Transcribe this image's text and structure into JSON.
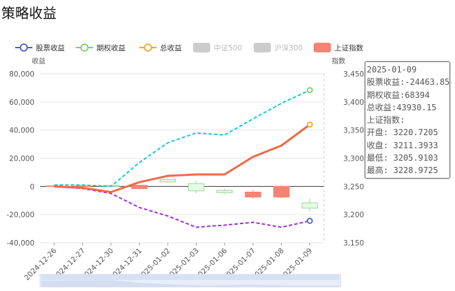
{
  "page": {
    "title": "策略收益"
  },
  "colors": {
    "stock": "#9b30e0",
    "option": "#15c8e0",
    "total": "#ee6a45",
    "candle_up": "#f98373",
    "candle_down": "#e4fbe4",
    "candle_down_border": "#9bd59b",
    "legend_disabled": "#cccccc",
    "grid": "#e6e6e6"
  },
  "legend": [
    {
      "name": "股票收益",
      "icon": "circle-line",
      "color": "#4b5fc4",
      "enabled": true
    },
    {
      "name": "期权收益",
      "icon": "circle-line",
      "color": "#7ccf66",
      "enabled": true
    },
    {
      "name": "总收益",
      "icon": "circle-line",
      "color": "#f5a623",
      "enabled": true
    },
    {
      "name": "中证500",
      "icon": "rounded-rect",
      "color": "#cccccc",
      "enabled": false
    },
    {
      "name": "沪深300",
      "icon": "rounded-rect",
      "color": "#cccccc",
      "enabled": false
    },
    {
      "name": "上证指数",
      "icon": "rounded-rect",
      "color": "#f98373",
      "enabled": true
    }
  ],
  "tooltip": {
    "date": "2025-01-09",
    "rows": [
      {
        "label": "股票收益",
        "value": "-24463.85"
      },
      {
        "label": "期权收益",
        "value": "68394"
      },
      {
        "label": "总收益",
        "value": "43930.15"
      }
    ],
    "index_label": "上证指数:",
    "index_rows": [
      {
        "label": "开盘",
        "value": "3220.7205"
      },
      {
        "label": "收盘",
        "value": "3211.3933"
      },
      {
        "label": "最低",
        "value": "3205.9103"
      },
      {
        "label": "最高",
        "value": "3228.9725"
      }
    ]
  },
  "chart_data": {
    "type": "line",
    "categories": [
      "2024-12-26",
      "2024-12-27",
      "2024-12-30",
      "2024-12-31",
      "2025-01-02",
      "2025-01-03",
      "2025-01-06",
      "2025-01-07",
      "2025-01-08",
      "2025-01-09"
    ],
    "y_left": {
      "label": "收益",
      "min": -40000,
      "max": 80000,
      "ticks": [
        "80,000",
        "60,000",
        "40,000",
        "20,000",
        "0",
        "-20,000",
        "-40,000"
      ]
    },
    "y_right": {
      "label": "指数",
      "min": 3150,
      "max": 3450,
      "ticks": [
        "3,450",
        "3,400",
        "3,350",
        "3,300",
        "3,250",
        "3,200",
        "3,150"
      ]
    },
    "series": [
      {
        "name": "股票收益",
        "axis": "left",
        "values": [
          0,
          -1500,
          -5000,
          -15000,
          -21000,
          -29000,
          -27500,
          -25500,
          -29000,
          -24463.85
        ]
      },
      {
        "name": "期权收益",
        "axis": "left",
        "values": [
          1000,
          1000,
          0,
          17000,
          31000,
          38000,
          36500,
          48000,
          59000,
          68394
        ]
      },
      {
        "name": "总收益",
        "axis": "left",
        "values": [
          0,
          -1000,
          -4000,
          3000,
          7500,
          8500,
          8500,
          21000,
          29000,
          43930.15
        ]
      },
      {
        "name": "上证指数",
        "axis": "right",
        "type": "candlestick",
        "ohlc": [
          [
            3251,
            3251,
            3250,
            3252
          ],
          [
            3251,
            3251,
            3250,
            3252
          ],
          [
            3252,
            3250,
            3249,
            3253
          ],
          [
            3246,
            3252,
            3245,
            3253
          ],
          [
            3262,
            3258,
            3256,
            3266
          ],
          [
            3255,
            3242,
            3238,
            3260
          ],
          [
            3243,
            3239,
            3236,
            3246
          ],
          [
            3231,
            3240,
            3228,
            3244
          ],
          [
            3231,
            3250,
            3229,
            3252
          ],
          [
            3220.7205,
            3211.3933,
            3205.9103,
            3228.9725
          ]
        ]
      }
    ]
  }
}
